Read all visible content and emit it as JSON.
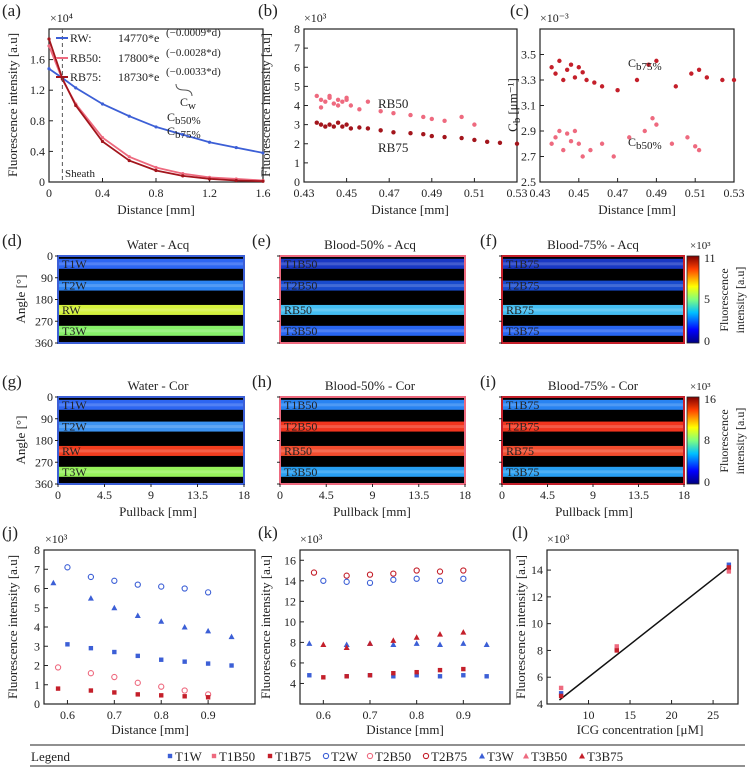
{
  "colors": {
    "water": "#3c5fd6",
    "b50": "#ee6a7f",
    "b75": "#c41f2a",
    "dark_red": "#a3151c",
    "axis": "#222222"
  },
  "panel_letters": [
    "(a)",
    "(b)",
    "(c)",
    "(d)",
    "(e)",
    "(f)",
    "(g)",
    "(h)",
    "(i)",
    "(j)",
    "(k)",
    "(l)"
  ],
  "panel_a": {
    "exponent": "×10⁴",
    "ylabel": "Fluorescence intensity [a.u]",
    "xlabel": "Distance [mm]",
    "legend": [
      {
        "name": "RW:",
        "coef": "14770*e",
        "rate": "(−0.0009*d)"
      },
      {
        "name": "RB50:",
        "coef": "17800*e",
        "rate": "(−0.0028*d)"
      },
      {
        "name": "RB75:",
        "coef": "18730*e",
        "rate": "(−0.0033*d)"
      }
    ],
    "labels": {
      "cw": "C",
      "cw_sub": "w",
      "cb50": "C",
      "cb50_sub": "b50%",
      "cb75": "C",
      "cb75_sub": "b75%",
      "sheath": "Sheath"
    }
  },
  "panel_b": {
    "exponent": "×10³",
    "ylabel": "Fluorescence intensity [a.u]",
    "xlabel": "Distance [mm]",
    "rb50": "RB50",
    "rb75": "RB75"
  },
  "panel_c": {
    "exponent": "×10⁻³",
    "ylabel": "C",
    "ylabel_sub": "b",
    "ylabel_unit": "[μm⁻¹]",
    "xlabel": "Distance [mm]",
    "cb75": "C",
    "cb75_sub": "b75%",
    "cb50": "C",
    "cb50_sub": "b50%"
  },
  "heatmaps": {
    "acq_titles": [
      "Water - Acq",
      "Blood-50% - Acq",
      "Blood-75% - Acq"
    ],
    "cor_titles": [
      "Water - Cor",
      "Blood-50% - Cor",
      "Blood-75% - Cor"
    ],
    "ylabel": "Angle [°]",
    "xlabel": "Pullback [mm]",
    "yticks": [
      "0",
      "90",
      "180",
      "270",
      "360"
    ],
    "xticks": [
      "0",
      "4.5",
      "9",
      "13.5",
      "18"
    ],
    "water_rows": [
      "T1W",
      "T2W",
      "RW",
      "T3W"
    ],
    "b50_rows": [
      "T1B50",
      "T2B50",
      "RB50",
      "T3B50"
    ],
    "b75_rows": [
      "T1B75",
      "T2B75",
      "RB75",
      "T3B75"
    ],
    "cbar_acq": {
      "exponent": "×10³",
      "ticks": [
        "11",
        "5",
        "0"
      ],
      "label1": "Fluorescence",
      "label2": "intensity [a.u]"
    },
    "cbar_cor": {
      "exponent": "×10³",
      "ticks": [
        "16",
        "8",
        "0"
      ],
      "label1": "Fluorescence",
      "label2": "intensity [a.u]"
    }
  },
  "panel_j": {
    "exponent": "×10³",
    "ylabel": "Fluorescence intensity [a.u]",
    "xlabel": "Distance [mm]"
  },
  "panel_k": {
    "exponent": "×10³",
    "ylabel": "Fluorescence intensity [a.u]",
    "xlabel": "Distance [mm]"
  },
  "panel_l": {
    "exponent": "×10³",
    "ylabel": "Fluorescence intensity [a.u]",
    "xlabel": "ICG concentration [μM]"
  },
  "legend": {
    "title": "Legend",
    "entries": [
      "T1W",
      "T1B50",
      "T1B75",
      "T2W",
      "T2B50",
      "T2B75",
      "T3W",
      "T3B50",
      "T3B75"
    ]
  },
  "chart_data": [
    {
      "id": "a",
      "type": "line",
      "title": "",
      "xlabel": "Distance [mm]",
      "ylabel": "Fluorescence intensity [a.u]",
      "xlim": [
        0,
        1.6
      ],
      "ylim": [
        0,
        2.0
      ],
      "y_scale": "×10⁴",
      "xticks": [
        "0",
        "0.4",
        "0.8",
        "1.2",
        "1.6"
      ],
      "yticks": [
        "0",
        "0.4",
        "0.8",
        "1.2",
        "1.6"
      ],
      "sheath_x": 0.1,
      "series": [
        {
          "name": "RW",
          "x": [
            0,
            0.1,
            0.2,
            0.4,
            0.6,
            0.8,
            1.0,
            1.2,
            1.4,
            1.6
          ],
          "values": [
            1.48,
            1.36,
            1.23,
            1.02,
            0.86,
            0.72,
            0.62,
            0.52,
            0.45,
            0.38
          ]
        },
        {
          "name": "RB50",
          "x": [
            0,
            0.1,
            0.2,
            0.4,
            0.6,
            0.8,
            1.0,
            1.2,
            1.4,
            1.6
          ],
          "values": [
            1.78,
            1.34,
            1.02,
            0.58,
            0.33,
            0.19,
            0.11,
            0.06,
            0.04,
            0.02
          ]
        },
        {
          "name": "RB75",
          "x": [
            0,
            0.1,
            0.2,
            0.4,
            0.6,
            0.8,
            1.0,
            1.2,
            1.4,
            1.6
          ],
          "values": [
            1.87,
            1.35,
            1.0,
            0.53,
            0.28,
            0.15,
            0.08,
            0.04,
            0.02,
            0.01
          ]
        }
      ]
    },
    {
      "id": "b",
      "type": "scatter",
      "xlabel": "Distance [mm]",
      "ylabel": "Fluorescence intensity [a.u]",
      "xlim": [
        0.43,
        0.53
      ],
      "ylim": [
        0,
        8
      ],
      "y_scale": "×10³",
      "xticks": [
        "0.43",
        "0.45",
        "0.47",
        "0.49",
        "0.51",
        "0.53"
      ],
      "yticks": [
        "0",
        "1",
        "2",
        "3",
        "4",
        "5",
        "6",
        "7",
        "8"
      ],
      "series": [
        {
          "name": "RB50",
          "x": [
            0.436,
            0.438,
            0.44,
            0.442,
            0.444,
            0.446,
            0.448,
            0.45,
            0.452,
            0.438,
            0.442,
            0.446,
            0.45,
            0.456,
            0.46,
            0.466,
            0.472,
            0.48,
            0.486,
            0.49,
            0.496,
            0.504,
            0.51
          ],
          "values": [
            4.5,
            4.3,
            4.2,
            4.4,
            4.1,
            4.3,
            4.2,
            4.4,
            4.0,
            3.9,
            4.5,
            4.0,
            4.3,
            3.8,
            4.2,
            3.7,
            3.6,
            3.5,
            3.4,
            3.3,
            3.2,
            3.4,
            3.0
          ]
        },
        {
          "name": "RB75",
          "x": [
            0.436,
            0.438,
            0.44,
            0.442,
            0.444,
            0.446,
            0.448,
            0.45,
            0.452,
            0.456,
            0.46,
            0.466,
            0.472,
            0.48,
            0.486,
            0.49,
            0.496,
            0.504,
            0.51,
            0.516,
            0.522,
            0.53
          ],
          "values": [
            3.1,
            3.0,
            2.9,
            3.0,
            2.9,
            3.1,
            2.9,
            3.0,
            2.8,
            2.85,
            2.8,
            2.7,
            2.6,
            2.55,
            2.5,
            2.4,
            2.35,
            2.3,
            2.2,
            2.1,
            2.05,
            2.0
          ]
        }
      ]
    },
    {
      "id": "c",
      "type": "scatter",
      "xlabel": "Distance [mm]",
      "ylabel": "Cb [μm⁻¹]",
      "xlim": [
        0.43,
        0.53
      ],
      "ylim": [
        2.5,
        3.7
      ],
      "y_scale": "×10⁻³",
      "xticks": [
        "0.43",
        "0.45",
        "0.47",
        "0.49",
        "0.51",
        "0.53"
      ],
      "yticks": [
        "2.5",
        "2.7",
        "2.9",
        "3.1",
        "3.3",
        "3.5"
      ],
      "series": [
        {
          "name": "Cb75%",
          "x": [
            0.436,
            0.438,
            0.44,
            0.442,
            0.444,
            0.446,
            0.448,
            0.45,
            0.452,
            0.454,
            0.458,
            0.462,
            0.47,
            0.48,
            0.486,
            0.49,
            0.5,
            0.508,
            0.512,
            0.516,
            0.524,
            0.53
          ],
          "values": [
            3.4,
            3.35,
            3.45,
            3.3,
            3.38,
            3.42,
            3.32,
            3.4,
            3.36,
            3.3,
            3.28,
            3.25,
            3.22,
            3.3,
            3.42,
            3.45,
            3.25,
            3.35,
            3.38,
            3.32,
            3.3,
            3.3
          ]
        },
        {
          "name": "Cb50%",
          "x": [
            0.436,
            0.438,
            0.44,
            0.442,
            0.444,
            0.446,
            0.448,
            0.45,
            0.452,
            0.456,
            0.462,
            0.468,
            0.476,
            0.484,
            0.488,
            0.49,
            0.498,
            0.506,
            0.51,
            0.512
          ],
          "values": [
            2.8,
            2.85,
            2.9,
            2.75,
            2.88,
            2.82,
            2.9,
            2.8,
            2.7,
            2.75,
            2.8,
            2.7,
            2.85,
            2.9,
            3.0,
            2.95,
            2.8,
            2.85,
            2.78,
            2.75
          ]
        }
      ]
    },
    {
      "id": "j",
      "type": "scatter",
      "xlabel": "Distance [mm]",
      "ylabel": "Fluorescence intensity [a.u]",
      "xlim": [
        0.55,
        1.0
      ],
      "ylim": [
        0,
        8
      ],
      "y_scale": "×10³",
      "xticks": [
        "0.6",
        "0.7",
        "0.8",
        "0.9"
      ],
      "yticks": [
        "0",
        "1",
        "2",
        "3",
        "4",
        "5",
        "6",
        "7",
        "8"
      ],
      "series": [
        {
          "name": "T2W",
          "x": [
            0.6,
            0.65,
            0.7,
            0.75,
            0.8,
            0.85,
            0.9
          ],
          "values": [
            7.1,
            6.6,
            6.4,
            6.2,
            6.1,
            6.0,
            5.8
          ]
        },
        {
          "name": "T3W",
          "x": [
            0.57,
            0.65,
            0.7,
            0.75,
            0.8,
            0.85,
            0.9,
            0.95
          ],
          "values": [
            6.3,
            5.5,
            5.0,
            4.6,
            4.3,
            4.0,
            3.8,
            3.5
          ]
        },
        {
          "name": "T1W",
          "x": [
            0.6,
            0.65,
            0.7,
            0.75,
            0.8,
            0.85,
            0.9,
            0.95
          ],
          "values": [
            3.1,
            2.9,
            2.7,
            2.5,
            2.3,
            2.2,
            2.1,
            2.0
          ]
        },
        {
          "name": "T2B50",
          "x": [
            0.58,
            0.65,
            0.7,
            0.75,
            0.8,
            0.85,
            0.9
          ],
          "values": [
            1.9,
            1.6,
            1.4,
            1.1,
            0.9,
            0.7,
            0.5
          ]
        },
        {
          "name": "T1B75",
          "x": [
            0.58,
            0.65,
            0.7,
            0.75,
            0.8,
            0.85,
            0.9
          ],
          "values": [
            0.8,
            0.7,
            0.6,
            0.5,
            0.45,
            0.4,
            0.35
          ]
        }
      ]
    },
    {
      "id": "k",
      "type": "scatter",
      "xlabel": "Distance [mm]",
      "ylabel": "Fluorescence intensity [a.u]",
      "xlim": [
        0.55,
        1.0
      ],
      "ylim": [
        2,
        17
      ],
      "y_scale": "×10³",
      "xticks": [
        "0.6",
        "0.7",
        "0.8",
        "0.9"
      ],
      "yticks": [
        "4",
        "6",
        "8",
        "10",
        "12",
        "14",
        "16"
      ],
      "series": [
        {
          "name": "T2B75",
          "x": [
            0.58,
            0.65,
            0.7,
            0.75,
            0.8,
            0.85,
            0.9
          ],
          "values": [
            14.8,
            14.5,
            14.6,
            14.7,
            15.0,
            14.9,
            15.0
          ]
        },
        {
          "name": "T2W",
          "x": [
            0.6,
            0.65,
            0.7,
            0.75,
            0.8,
            0.85,
            0.9
          ],
          "values": [
            14.0,
            13.9,
            13.8,
            14.1,
            14.2,
            14.0,
            14.2
          ]
        },
        {
          "name": "T3W",
          "x": [
            0.57,
            0.65,
            0.7,
            0.75,
            0.8,
            0.85,
            0.9,
            0.95
          ],
          "values": [
            7.9,
            7.8,
            7.9,
            7.8,
            7.9,
            7.8,
            7.9,
            7.8
          ]
        },
        {
          "name": "T3B75",
          "x": [
            0.6,
            0.65,
            0.7,
            0.75,
            0.8,
            0.85,
            0.9
          ],
          "values": [
            7.8,
            7.5,
            7.9,
            8.2,
            8.5,
            8.8,
            9.0
          ]
        },
        {
          "name": "T1W",
          "x": [
            0.57,
            0.65,
            0.7,
            0.75,
            0.8,
            0.85,
            0.9,
            0.95
          ],
          "values": [
            4.8,
            4.7,
            4.8,
            4.7,
            4.8,
            4.7,
            4.8,
            4.7
          ]
        },
        {
          "name": "T1B75",
          "x": [
            0.6,
            0.65,
            0.7,
            0.75,
            0.8,
            0.85,
            0.9
          ],
          "values": [
            4.6,
            4.7,
            4.8,
            5.0,
            5.1,
            5.3,
            5.4
          ]
        }
      ]
    },
    {
      "id": "l",
      "type": "scatter",
      "xlabel": "ICG concentration [μM]",
      "ylabel": "Fluorescence intensity [a.u]",
      "xlim": [
        5,
        28
      ],
      "ylim": [
        4,
        15.5
      ],
      "y_scale": "×10³",
      "xticks": [
        "10",
        "15",
        "20",
        "25"
      ],
      "yticks": [
        "4",
        "6",
        "8",
        "10",
        "12",
        "14"
      ],
      "fit": {
        "x": [
          6.5,
          27
        ],
        "values": [
          4.3,
          14.3
        ]
      },
      "series": [
        {
          "name": "Water",
          "x": [
            6.7,
            13.4,
            26.9
          ],
          "values": [
            4.8,
            8.1,
            14.4
          ]
        },
        {
          "name": "Blood-50%",
          "x": [
            6.7,
            13.4,
            26.9
          ],
          "values": [
            5.2,
            8.3,
            13.9
          ]
        },
        {
          "name": "Blood-75%",
          "x": [
            6.7,
            13.4,
            26.9
          ],
          "values": [
            4.6,
            8.0,
            14.2
          ]
        }
      ]
    }
  ]
}
